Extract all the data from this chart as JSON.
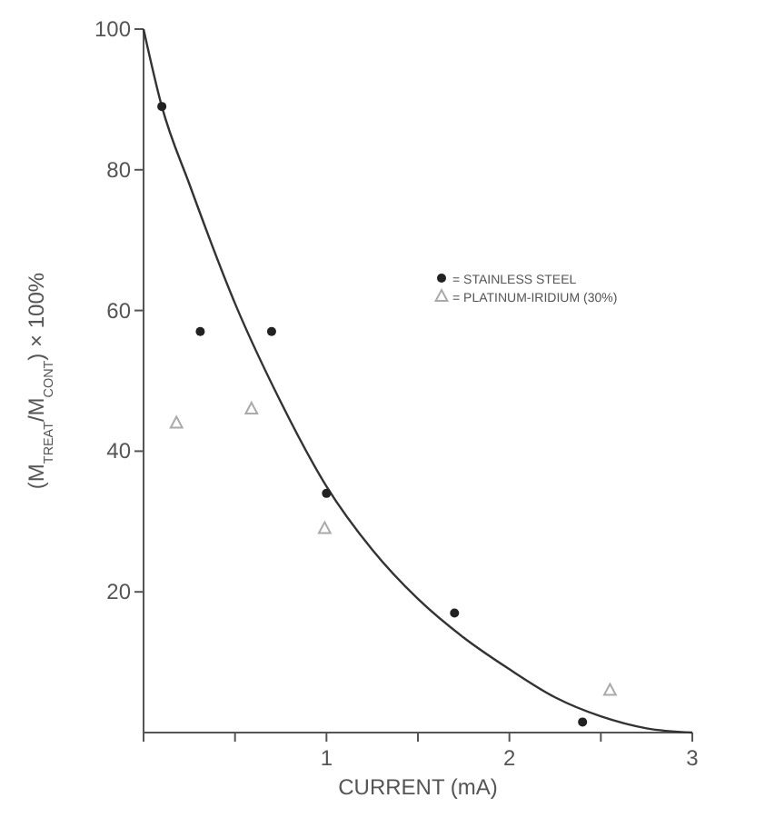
{
  "chart_data": {
    "type": "scatter",
    "xlabel": "CURRENT (mA)",
    "ylabel": "(M$_{TREAT}$/M$_{CONT}$) × 100%",
    "xlim": [
      0,
      3
    ],
    "ylim": [
      0,
      100
    ],
    "xticks": [
      {
        "value": 0,
        "label": null
      },
      {
        "value": 0.5,
        "label": null
      },
      1,
      {
        "value": 1.5,
        "label": null
      },
      2,
      {
        "value": 2.5,
        "label": null
      },
      3
    ],
    "yticks": [
      20,
      40,
      60,
      80,
      100
    ],
    "grid": false,
    "legend": "right",
    "series": [
      {
        "name": "= STAINLESS STEEL",
        "color": "#222222",
        "marker": "circle",
        "x": [
          0.1,
          0.31,
          0.7,
          1.0,
          1.7,
          2.4
        ],
        "values": [
          89,
          57,
          57,
          34,
          17,
          1.5
        ]
      },
      {
        "name": "= PLATINUM-IRIDIUM (30%)",
        "color": "#aaaaaa",
        "marker": "triangle",
        "x": [
          0.18,
          0.59,
          0.99,
          2.55
        ],
        "values": [
          44,
          46,
          29,
          6
        ]
      },
      {
        "type": "line",
        "color": "#333333",
        "marker": "none",
        "x": [
          0,
          0.1,
          0.25,
          0.5,
          0.75,
          1,
          1.25,
          1.5,
          1.75,
          2,
          2.25,
          2.5,
          2.75,
          3
        ],
        "values": [
          100,
          89,
          78,
          61,
          47,
          35,
          26,
          19,
          13.5,
          9,
          5,
          2.3,
          0.6,
          0
        ]
      }
    ]
  }
}
